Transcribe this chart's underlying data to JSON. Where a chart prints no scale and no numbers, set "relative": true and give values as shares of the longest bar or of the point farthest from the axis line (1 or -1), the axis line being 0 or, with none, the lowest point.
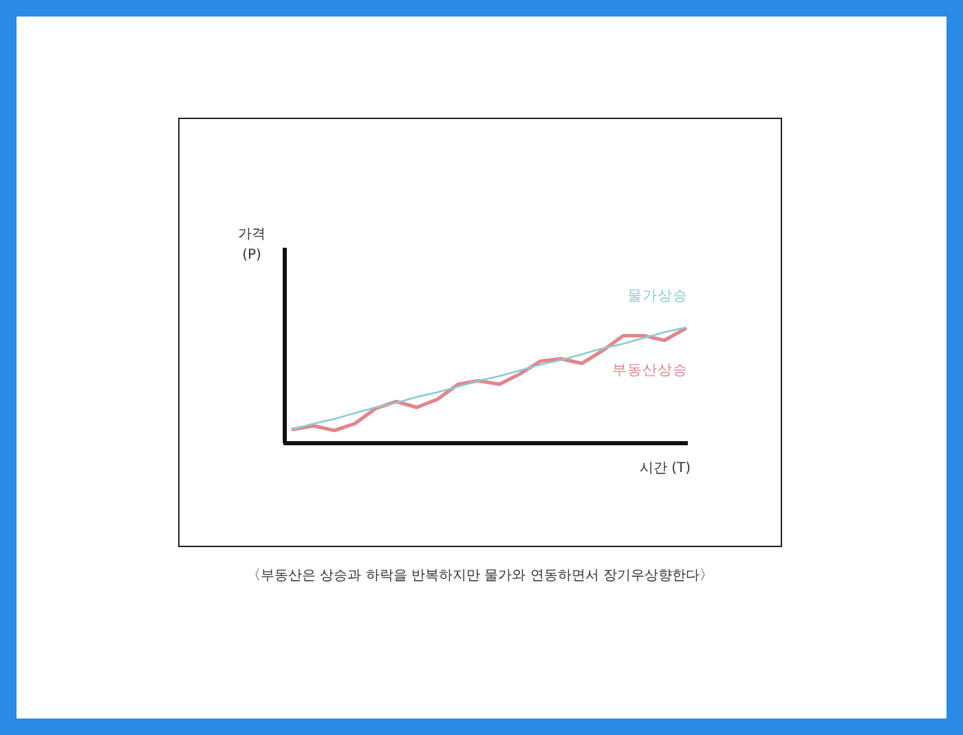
{
  "chart_data": {
    "type": "line",
    "relative": true,
    "xlabel": "시간 (T)",
    "ylabel": "가격\n(P)",
    "categories": [
      null,
      null,
      null,
      null,
      null,
      null,
      null,
      null,
      null,
      null,
      null,
      null,
      null,
      null,
      null,
      null,
      null,
      null,
      null,
      null
    ],
    "series": [
      {
        "name": "물가상승",
        "color": "#8ec9d2",
        "values": [
          0.12,
          0.17,
          0.21,
          0.26,
          0.31,
          0.35,
          0.4,
          0.44,
          0.49,
          0.54,
          0.58,
          0.63,
          0.68,
          0.72,
          0.77,
          0.82,
          0.86,
          0.91,
          0.96,
          1.0
        ]
      },
      {
        "name": "부동산상승",
        "color": "#e0868c",
        "values": [
          0.12,
          0.15,
          0.11,
          0.17,
          0.3,
          0.36,
          0.31,
          0.38,
          0.51,
          0.54,
          0.51,
          0.6,
          0.71,
          0.73,
          0.69,
          0.8,
          0.93,
          0.93,
          0.89,
          0.99
        ]
      }
    ],
    "annotations": [
      "〈부동산은 상승과 하락을 반복하지만 물가와 연동하면서 장기우상향한다〉"
    ]
  }
}
